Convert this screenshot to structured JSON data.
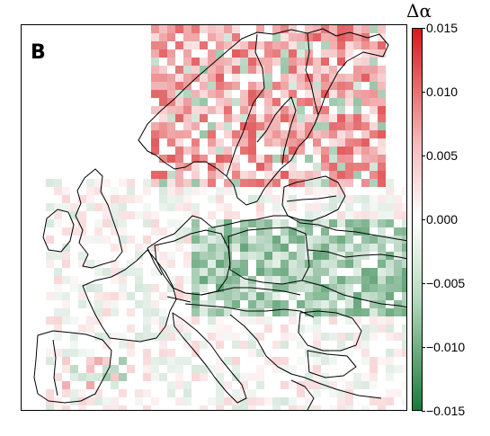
{
  "panel_label": "B",
  "legend": {
    "title": "Δα",
    "ticks": [
      "0.015",
      "0.010",
      "0.005",
      "0.000",
      "−0.005",
      "−0.010",
      "−0.015"
    ],
    "tick_values": [
      0.015,
      0.01,
      0.005,
      0.0,
      -0.005,
      -0.01,
      -0.015
    ],
    "min": -0.015,
    "max": 0.015,
    "color_high": "#d7191c",
    "color_mid": "#ffffff",
    "color_low": "#1a7a3a"
  },
  "map": {
    "region": "Europe",
    "outline_color": "#000000",
    "background": "#ffffff"
  }
}
